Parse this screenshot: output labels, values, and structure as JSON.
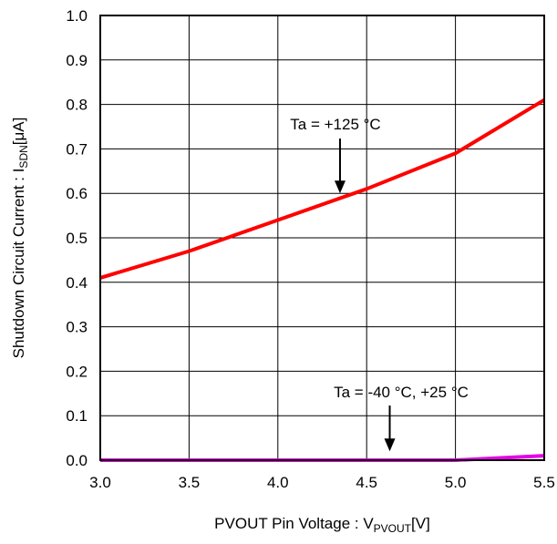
{
  "chart_data": {
    "type": "line",
    "title": "",
    "xlabel": {
      "main": "PVOUT Pin Voltage : V",
      "sub": "PVOUT",
      "unit": "[V]"
    },
    "ylabel": {
      "main": "Shutdown Circuit Current : I",
      "sub": "SDN",
      "unit": "[μA]"
    },
    "xlim": [
      3.0,
      5.5
    ],
    "ylim": [
      0.0,
      1.0
    ],
    "xticks": [
      "3.0",
      "3.5",
      "4.0",
      "4.5",
      "5.0",
      "5.5"
    ],
    "yticks": [
      "0.0",
      "0.1",
      "0.2",
      "0.3",
      "0.4",
      "0.5",
      "0.6",
      "0.7",
      "0.8",
      "0.9",
      "1.0"
    ],
    "grid": true,
    "series": [
      {
        "color": "#ff0000",
        "x": [
          3.0,
          3.5,
          4.0,
          4.5,
          5.0,
          5.5
        ],
        "y": [
          0.41,
          0.47,
          0.54,
          0.61,
          0.69,
          0.81
        ]
      },
      {
        "color": "#e600e6",
        "x": [
          3.0,
          3.5,
          4.0,
          4.5,
          5.0,
          5.5
        ],
        "y": [
          0.0,
          0.0,
          0.0,
          0.0,
          0.0,
          0.01
        ]
      }
    ],
    "annotations": [
      {
        "text": "Ta = +125 °C",
        "arrow_to": [
          4.35,
          0.6
        ]
      },
      {
        "text": "Ta = -40 °C, +25 °C",
        "arrow_to": [
          4.63,
          0.02
        ]
      }
    ]
  }
}
